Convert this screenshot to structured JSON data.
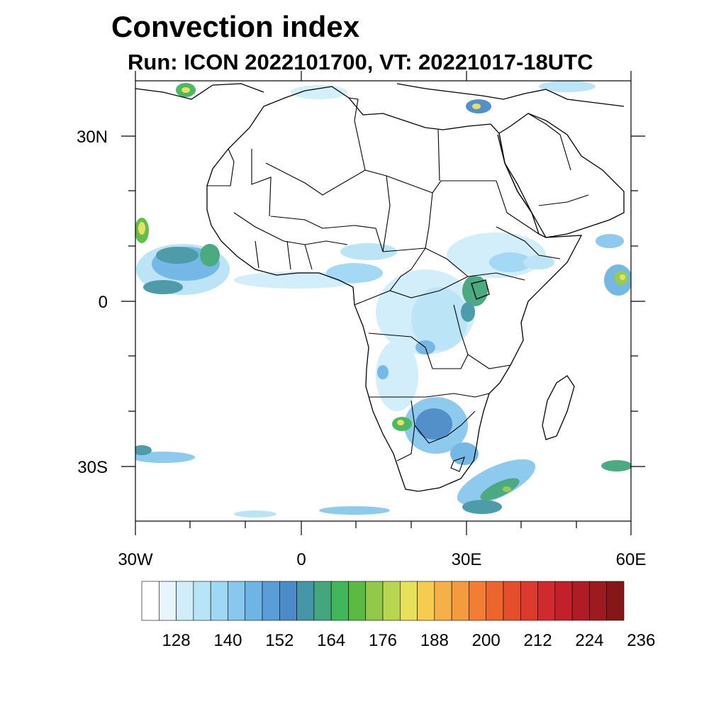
{
  "title": "Convection index",
  "subtitle": "Run: ICON 2022101700,  VT: 20221017-18UTC",
  "map": {
    "region": "Africa",
    "projection": "cylindrical equidistant",
    "lon_range": [
      -30,
      60
    ],
    "lat_range": [
      -40,
      40
    ],
    "lat_ticks": [
      {
        "value": 30,
        "label": "30N"
      },
      {
        "value": 0,
        "label": "0"
      },
      {
        "value": -30,
        "label": "30S"
      }
    ],
    "lon_ticks": [
      {
        "value": -30,
        "label": "30W"
      },
      {
        "value": 0,
        "label": "0"
      },
      {
        "value": 30,
        "label": "30E"
      },
      {
        "value": 60,
        "label": "60E"
      }
    ],
    "land_color": "#ffffff",
    "border_color": "#000000"
  },
  "colorbar": {
    "colors": [
      "#ffffff",
      "#e8f5fc",
      "#d0eefa",
      "#b8e4f7",
      "#9fd8f4",
      "#88c8ee",
      "#6eb4e4",
      "#5a9ed8",
      "#4a8bc8",
      "#4596a6",
      "#43a67c",
      "#43b55a",
      "#5aba44",
      "#92c94a",
      "#b8d550",
      "#e6e05a",
      "#f5cb50",
      "#f6b049",
      "#f49a3f",
      "#f17e34",
      "#ec652d",
      "#e54e2a",
      "#db3a2c",
      "#cf2a2d",
      "#c2202a",
      "#b01c25",
      "#9c1a20",
      "#861719"
    ],
    "tick_labels": [
      "128",
      "140",
      "152",
      "164",
      "176",
      "188",
      "200",
      "212",
      "224",
      "236"
    ]
  }
}
